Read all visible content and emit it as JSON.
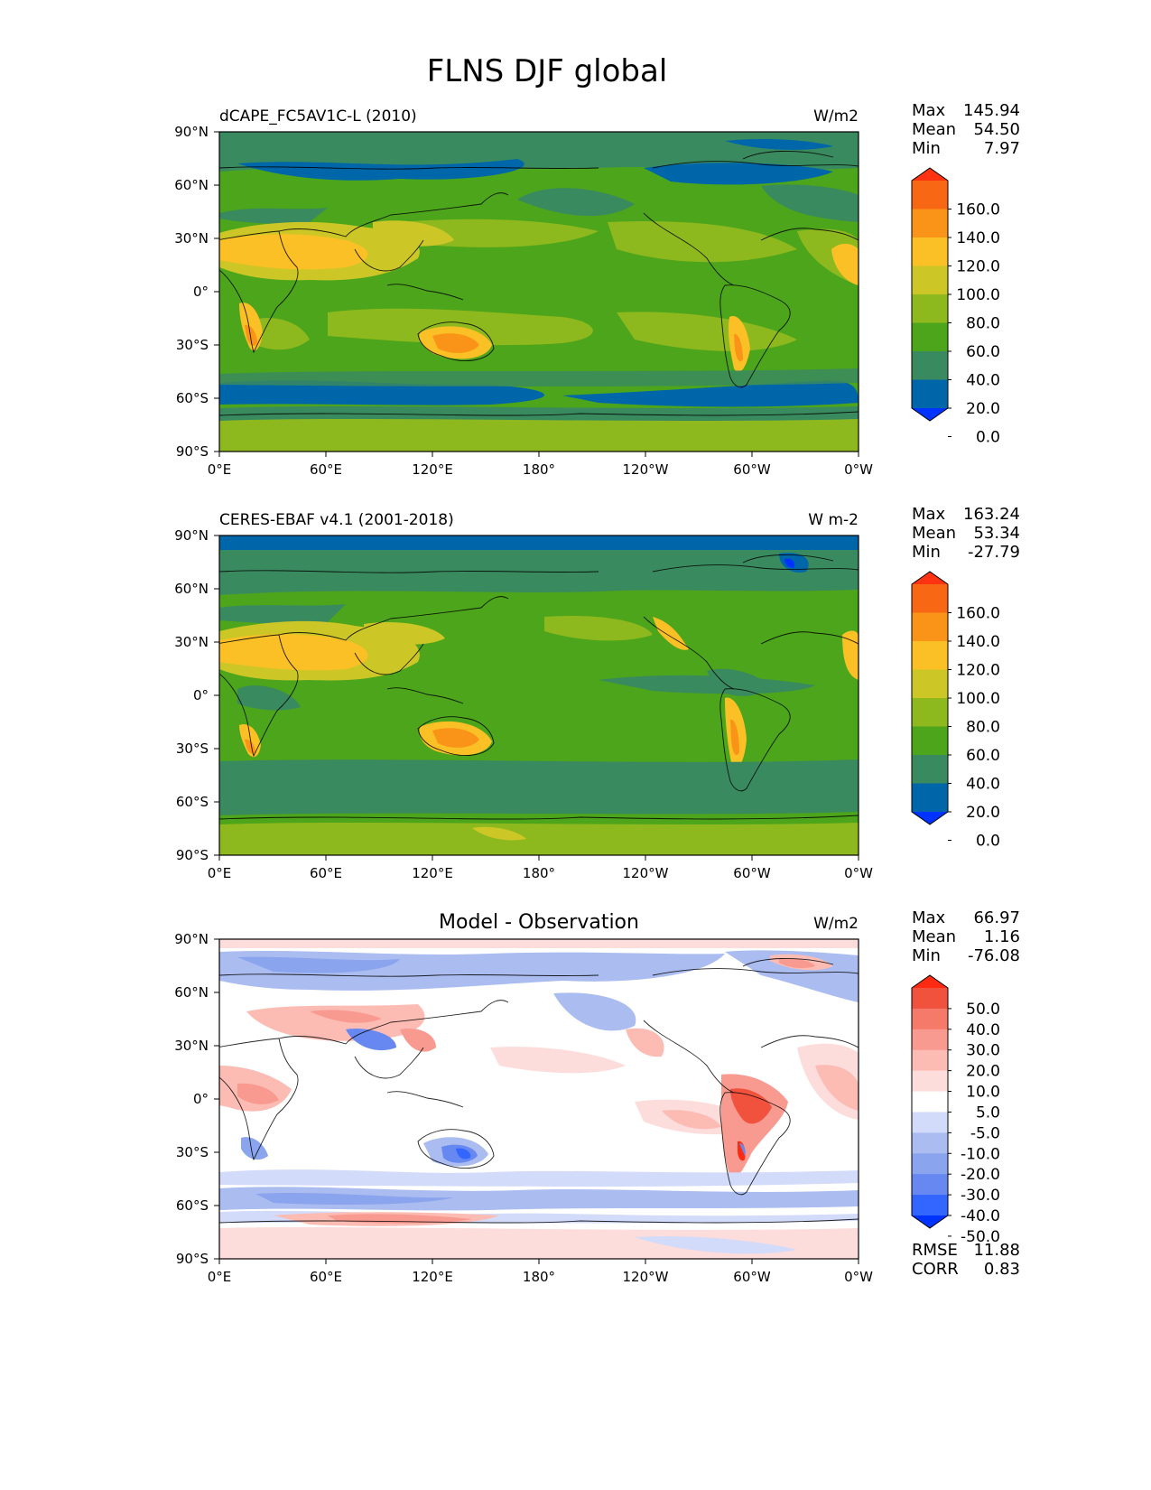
{
  "figure": {
    "title": "FLNS DJF global"
  },
  "maps": [
    {
      "title_left": "dCAPE_FC5AV1C-L (2010)",
      "title_center": "",
      "units": "W/m2",
      "stats": [
        {
          "label": "Max",
          "value": "145.94"
        },
        {
          "label": "Mean",
          "value": "54.50"
        },
        {
          "label": "Min",
          "value": "7.97"
        }
      ],
      "colorbar": {
        "labels": [
          "160.0",
          "140.0",
          "120.0",
          "100.0",
          "80.0",
          "60.0",
          "40.0",
          "20.0",
          "0.0"
        ],
        "colors": [
          "#0033ff",
          "#0066aa",
          "#3a8a5f",
          "#4ca51a",
          "#8db81e",
          "#ccc726",
          "#fbc025",
          "#fa9418",
          "#f86814",
          "#ff3311"
        ]
      },
      "extra": []
    },
    {
      "title_left": "CERES-EBAF v4.1 (2001-2018)",
      "title_center": "",
      "units": "W m-2",
      "stats": [
        {
          "label": "Max",
          "value": "163.24"
        },
        {
          "label": "Mean",
          "value": "53.34"
        },
        {
          "label": "Min",
          "value": "-27.79"
        }
      ],
      "colorbar": {
        "labels": [
          "160.0",
          "140.0",
          "120.0",
          "100.0",
          "80.0",
          "60.0",
          "40.0",
          "20.0",
          "0.0"
        ],
        "colors": [
          "#0033ff",
          "#0066aa",
          "#3a8a5f",
          "#4ca51a",
          "#8db81e",
          "#ccc726",
          "#fbc025",
          "#fa9418",
          "#f86814",
          "#ff3311"
        ]
      },
      "extra": []
    },
    {
      "title_left": "",
      "title_center": "Model - Observation",
      "units": "W/m2",
      "stats": [
        {
          "label": "Max",
          "value": "66.97"
        },
        {
          "label": "Mean",
          "value": "1.16"
        },
        {
          "label": "Min",
          "value": "-76.08"
        }
      ],
      "colorbar": {
        "labels": [
          "50.0",
          "40.0",
          "30.0",
          "20.0",
          "10.0",
          "5.0",
          "-5.0",
          "-10.0",
          "-20.0",
          "-30.0",
          "-40.0",
          "-50.0"
        ],
        "colors": [
          "#0033ff",
          "#3366ff",
          "#6688f0",
          "#8aa4ee",
          "#aabcf0",
          "#d3dbfa",
          "#ffffff",
          "#fddcdc",
          "#fcbcb4",
          "#f99a90",
          "#f57a6a",
          "#f1523e",
          "#ff2a12"
        ]
      },
      "extra": [
        {
          "label": "RMSE",
          "value": "11.88"
        },
        {
          "label": "CORR",
          "value": "0.83"
        }
      ]
    }
  ],
  "axes": {
    "x_ticks": [
      "0°E",
      "60°E",
      "120°E",
      "180°",
      "120°W",
      "60°W",
      "0°W"
    ],
    "y_ticks": [
      "90°N",
      "60°N",
      "30°N",
      "0°",
      "30°S",
      "60°S",
      "90°S"
    ]
  }
}
